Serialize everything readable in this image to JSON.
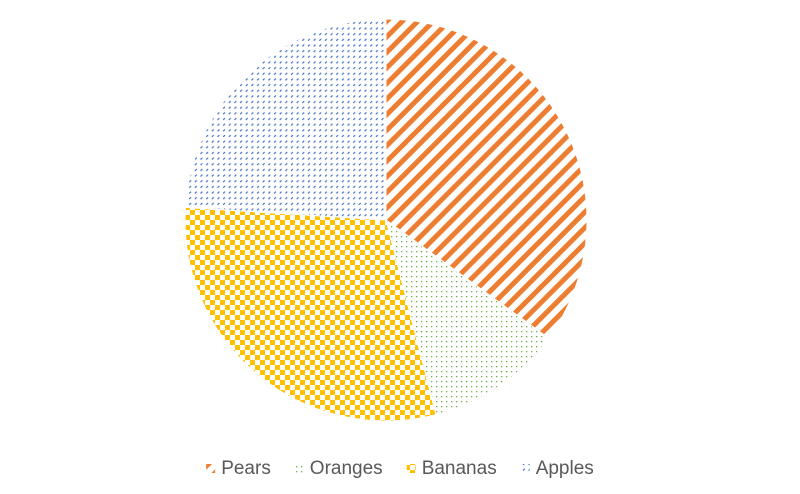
{
  "chart_data": {
    "type": "pie",
    "title": "",
    "start_angle_deg": 0,
    "direction": "clockwise",
    "slices": [
      {
        "name": "Pears",
        "value": 35,
        "color": "#ED7D31",
        "pattern": "diagonal-stripes"
      },
      {
        "name": "Oranges",
        "value": 11,
        "color": "#70AD47",
        "pattern": "small-dots"
      },
      {
        "name": "Bananas",
        "value": 30,
        "color": "#FFC000",
        "pattern": "checkerboard"
      },
      {
        "name": "Apples",
        "value": 24,
        "color": "#4472C4",
        "pattern": "dashes"
      }
    ],
    "legend": {
      "position": "bottom"
    }
  }
}
